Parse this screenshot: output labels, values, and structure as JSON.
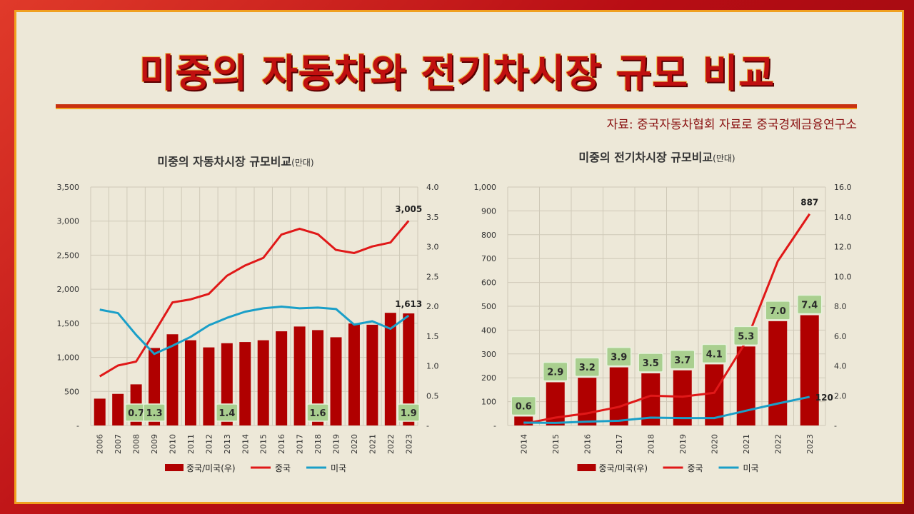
{
  "page": {
    "title": "미중의 자동차와 전기차시장 규모 비교",
    "source": "자료: 중국자동차협회 자료로 중국경제금융연구소"
  },
  "chart_data": [
    {
      "type": "bar+line",
      "title": "미중의 자동차시장  규모비교",
      "title_unit": "(만대)",
      "categories": [
        "2006",
        "2007",
        "2008",
        "2009",
        "2010",
        "2011",
        "2012",
        "2013",
        "2014",
        "2015",
        "2016",
        "2017",
        "2018",
        "2019",
        "2020",
        "2021",
        "2022",
        "2023"
      ],
      "left_axis": {
        "range": [
          0,
          3500
        ],
        "ticks": [
          "-",
          "500",
          "1,000",
          "1,500",
          "2,000",
          "2,500",
          "3,000",
          "3,500"
        ]
      },
      "right_axis": {
        "range": [
          0,
          4.0
        ],
        "ticks": [
          "-",
          "0.5",
          "1.0",
          "1.5",
          "2.0",
          "2.5",
          "3.0",
          "3.5",
          "4.0"
        ]
      },
      "grid": true,
      "series": [
        {
          "name": "중국/미국(우)",
          "kind": "bar",
          "axis": "right",
          "color": "#b00000",
          "values": [
            0.45,
            0.53,
            0.69,
            1.3,
            1.53,
            1.43,
            1.31,
            1.38,
            1.4,
            1.43,
            1.58,
            1.66,
            1.6,
            1.48,
            1.71,
            1.69,
            1.89,
            1.88
          ]
        },
        {
          "name": "중국",
          "kind": "line",
          "axis": "left",
          "color": "#e01818",
          "values": [
            721,
            880,
            938,
            1365,
            1806,
            1851,
            1931,
            2198,
            2349,
            2460,
            2803,
            2888,
            2808,
            2577,
            2531,
            2628,
            2686,
            3005
          ]
        },
        {
          "name": "미국",
          "kind": "line",
          "axis": "left",
          "color": "#1a9fc8",
          "values": [
            1700,
            1650,
            1330,
            1050,
            1170,
            1300,
            1470,
            1580,
            1670,
            1720,
            1745,
            1720,
            1730,
            1710,
            1480,
            1530,
            1420,
            1613
          ]
        }
      ],
      "bar_labels": [
        {
          "category": "2008",
          "text": "0.7"
        },
        {
          "category": "2009",
          "text": "1.3"
        },
        {
          "category": "2013",
          "text": "1.4"
        },
        {
          "category": "2018",
          "text": "1.6"
        },
        {
          "category": "2023",
          "text": "1.9"
        }
      ],
      "point_labels": [
        {
          "series": "중국",
          "category": "2023",
          "text": "3,005"
        },
        {
          "series": "미국",
          "category": "2023",
          "text": "1,613"
        }
      ],
      "legend": "bottom"
    },
    {
      "type": "bar+line",
      "title": "미중의 전기차시장  규모비교",
      "title_unit": "(만대)",
      "categories": [
        "2014",
        "2015",
        "2016",
        "2017",
        "2018",
        "2019",
        "2020",
        "2021",
        "2022",
        "2023"
      ],
      "left_axis": {
        "range": [
          0,
          1000
        ],
        "ticks": [
          "-",
          "100",
          "200",
          "300",
          "400",
          "500",
          "600",
          "700",
          "800",
          "900",
          "1,000"
        ]
      },
      "right_axis": {
        "range": [
          0,
          16.0
        ],
        "ticks": [
          "-",
          "2.0",
          "4.0",
          "6.0",
          "8.0",
          "10.0",
          "12.0",
          "14.0",
          "16.0"
        ]
      },
      "grid": true,
      "series": [
        {
          "name": "중국/미국(우)",
          "kind": "bar",
          "axis": "right",
          "color": "#b00000",
          "values": [
            0.6,
            2.9,
            3.2,
            3.9,
            3.5,
            3.7,
            4.1,
            5.3,
            7.0,
            7.4
          ]
        },
        {
          "name": "중국",
          "kind": "line",
          "axis": "left",
          "color": "#e01818",
          "values": [
            7,
            33,
            51,
            78,
            125,
            121,
            137,
            352,
            689,
            887
          ]
        },
        {
          "name": "미국",
          "kind": "line",
          "axis": "left",
          "color": "#1a9fc8",
          "values": [
            12,
            11,
            16,
            20,
            33,
            31,
            31,
            62,
            92,
            120
          ]
        }
      ],
      "bar_labels": [
        {
          "category": "2014",
          "text": "0.6"
        },
        {
          "category": "2015",
          "text": "2.9"
        },
        {
          "category": "2016",
          "text": "3.2"
        },
        {
          "category": "2017",
          "text": "3.9"
        },
        {
          "category": "2018",
          "text": "3.5"
        },
        {
          "category": "2019",
          "text": "3.7"
        },
        {
          "category": "2020",
          "text": "4.1"
        },
        {
          "category": "2021",
          "text": "5.3"
        },
        {
          "category": "2022",
          "text": "7.0"
        },
        {
          "category": "2023",
          "text": "7.4"
        }
      ],
      "point_labels": [
        {
          "series": "중국",
          "category": "2023",
          "text": "887"
        },
        {
          "series": "미국",
          "category": "2023",
          "text": "120"
        }
      ],
      "legend": "bottom"
    }
  ]
}
